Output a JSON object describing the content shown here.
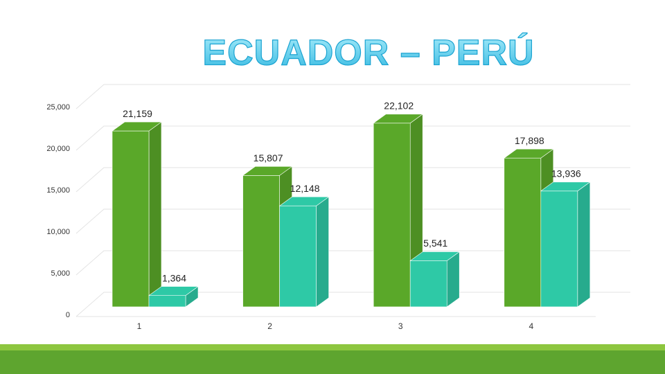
{
  "chart_data": {
    "type": "bar3d",
    "title": "ECUADOR – PERÚ",
    "categories": [
      "1",
      "2",
      "3",
      "4"
    ],
    "series": [
      {
        "color": "#5aa829",
        "values": [
          21159,
          15807,
          22102,
          17898
        ],
        "value_labels": [
          "21,159",
          "15,807",
          "22,102",
          "17,898"
        ]
      },
      {
        "color": "#2ec9a6",
        "values": [
          1364,
          12148,
          5541,
          13936
        ],
        "value_labels": [
          "1,364",
          "12,148",
          "5,541",
          "13,936"
        ]
      }
    ],
    "ylim": [
      0,
      25000
    ],
    "yticks": [
      0,
      {
        "value": 5000,
        "label": "5,000"
      },
      {
        "value": 10000,
        "label": "10,000"
      },
      {
        "value": 15000,
        "label": "15,000"
      },
      {
        "value": 20000,
        "label": "20,000"
      },
      {
        "value": 25000,
        "label": "25,000"
      }
    ],
    "grid": true
  }
}
